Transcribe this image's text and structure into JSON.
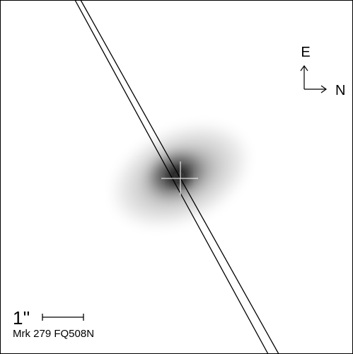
{
  "labels": {
    "east": "E",
    "north": "N",
    "scale": "1''",
    "caption": "Mrk 279 FQ508N"
  }
}
